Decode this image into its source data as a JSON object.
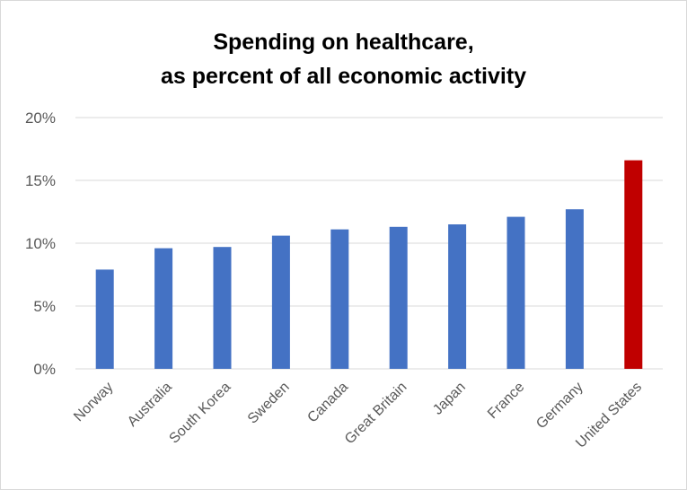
{
  "chart_data": {
    "type": "bar",
    "title_line1": "Spending on healthcare,",
    "title_line2": "as percent of all economic activity",
    "xlabel": "",
    "ylabel": "",
    "ylim": [
      0,
      20
    ],
    "yticks": [
      "0%",
      "5%",
      "10%",
      "15%",
      "20%"
    ],
    "ytick_values": [
      0,
      5,
      10,
      15,
      20
    ],
    "grid": true,
    "categories": [
      "Norway",
      "Australia",
      "South Korea",
      "Sweden",
      "Canada",
      "Great Britain",
      "Japan",
      "France",
      "Germany",
      "United States"
    ],
    "values": [
      7.9,
      9.6,
      9.7,
      10.6,
      11.1,
      11.3,
      11.5,
      12.1,
      12.7,
      16.6
    ],
    "colors": [
      "#4472c4",
      "#4472c4",
      "#4472c4",
      "#4472c4",
      "#4472c4",
      "#4472c4",
      "#4472c4",
      "#4472c4",
      "#4472c4",
      "#c00000"
    ],
    "gridline_color": "#d9d9d9"
  }
}
